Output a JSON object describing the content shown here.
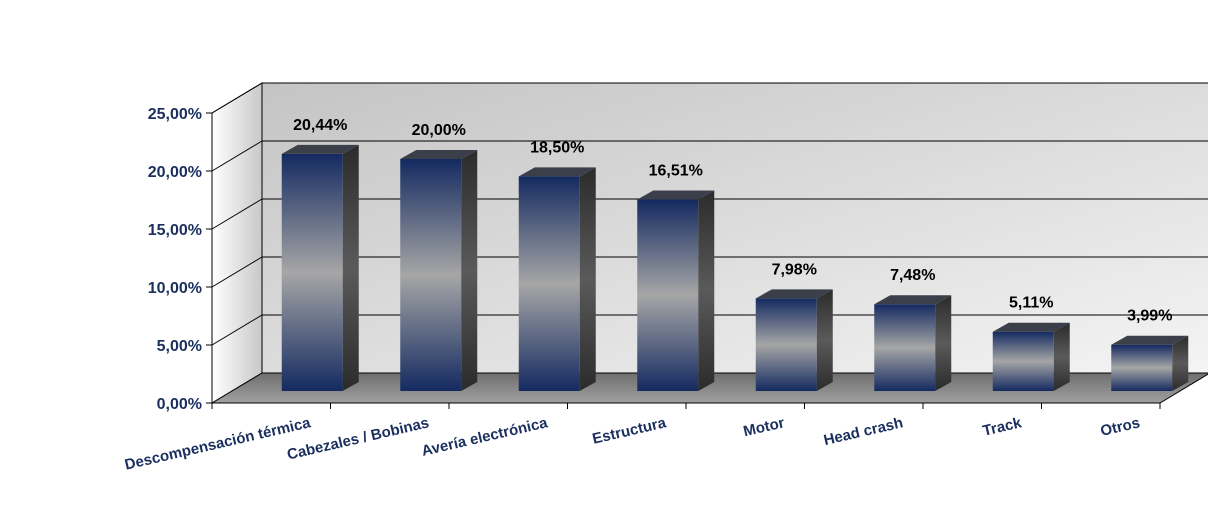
{
  "chart_data": {
    "type": "bar",
    "title": "",
    "xlabel": "",
    "ylabel": "",
    "categories": [
      "Descompensación térmica",
      "Cabezales / Bobinas",
      "Avería electrónica",
      "Estructura",
      "Motor",
      "Head crash",
      "Track",
      "Otros"
    ],
    "values": [
      20.44,
      20.0,
      18.5,
      16.51,
      7.98,
      7.48,
      5.11,
      3.99
    ],
    "data_labels": [
      "20,44%",
      "20,00%",
      "18,50%",
      "16,51%",
      "7,98%",
      "7,48%",
      "5,11%",
      "3,99%"
    ],
    "ylim": [
      0,
      25
    ],
    "y_ticks": [
      0,
      5,
      10,
      15,
      20,
      25
    ],
    "y_tick_labels": [
      "0,00%",
      "5,00%",
      "10,00%",
      "15,00%",
      "20,00%",
      "25,00%"
    ],
    "grid": true,
    "style": "3d-column",
    "colors": {
      "bar_dark": "#1a2f66",
      "bar_light": "#a6a6a6",
      "axis_text": "#1a2f5e",
      "wall_dark": "#bdbdbd",
      "wall_light": "#f2f2f2",
      "floor": "#8c8c8c"
    }
  }
}
